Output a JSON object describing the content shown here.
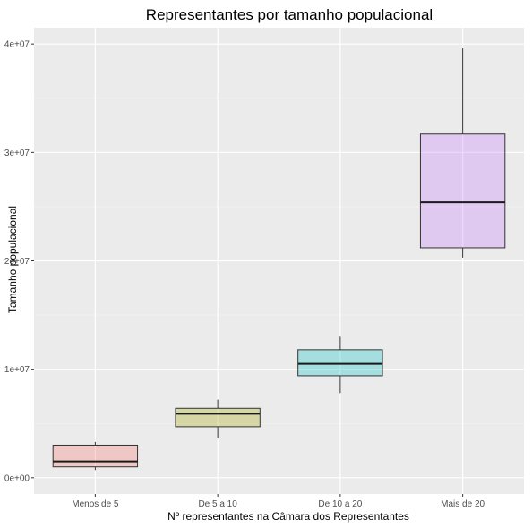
{
  "chart_data": {
    "type": "boxplot",
    "title": "Representantes por tamanho populacional",
    "xlabel": "Nº representantes na Câmara dos Representantes",
    "ylabel": "Tamanho populacional",
    "ylim": [
      -1500000,
      41500000
    ],
    "yticks": [
      0,
      10000000,
      20000000,
      30000000,
      40000000
    ],
    "ytick_labels": [
      "0e+00",
      "1e+07",
      "2e+07",
      "3e+07",
      "4e+07"
    ],
    "grid": true,
    "categories": [
      "Menos de 5",
      "De 5 a 10",
      "De 10 a 20",
      "Mais de 20"
    ],
    "boxes": [
      {
        "category": "Menos de 5",
        "min": 700000,
        "q1": 1000000,
        "median": 1500000,
        "q3": 3000000,
        "max": 3300000,
        "color": "#f8766d"
      },
      {
        "category": "De 5 a 10",
        "min": 3700000,
        "q1": 4700000,
        "median": 5900000,
        "q3": 6400000,
        "max": 7200000,
        "color": "#a3a500"
      },
      {
        "category": "De 10 a 20",
        "min": 7800000,
        "q1": 9400000,
        "median": 10500000,
        "q3": 11800000,
        "max": 13000000,
        "color": "#00bfc4"
      },
      {
        "category": "Mais de 20",
        "min": 20300000,
        "q1": 21200000,
        "median": 25400000,
        "q3": 31700000,
        "max": 39600000,
        "color": "#c77cff"
      }
    ],
    "colors": {
      "panel_background": "#ebebeb",
      "grid_major": "#ffffff",
      "grid_minor": "#f5f5f5"
    }
  }
}
